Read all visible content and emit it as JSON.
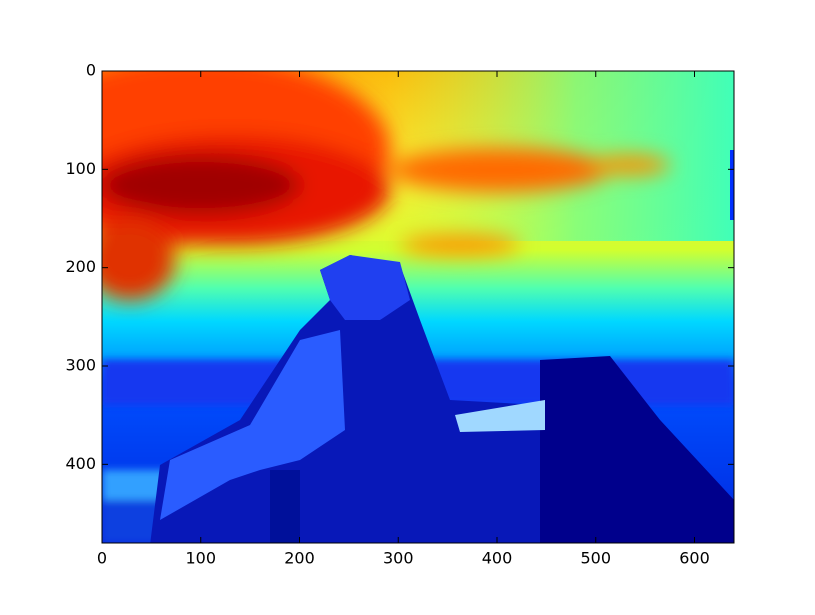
{
  "chart_data": {
    "type": "image",
    "xlim": [
      0,
      640
    ],
    "ylim": [
      480,
      0
    ],
    "xticks": [
      0,
      100,
      200,
      300,
      400,
      500,
      600
    ],
    "yticks": [
      0,
      100,
      200,
      300,
      400
    ]
  }
}
